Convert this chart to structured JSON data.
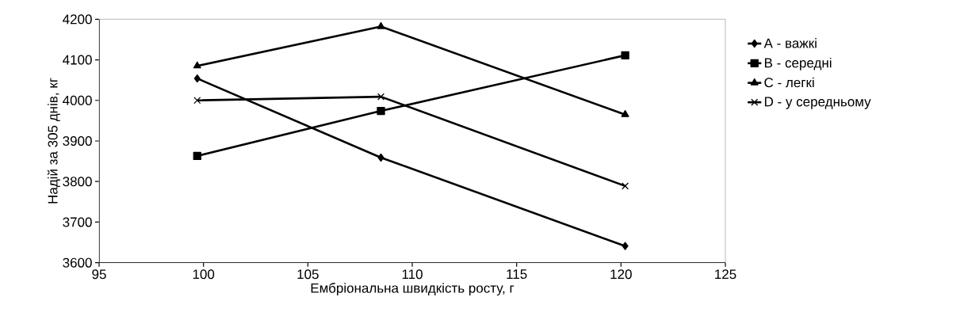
{
  "chart_data": {
    "type": "line",
    "xlabel": "Ембріональна швидкість росту, г",
    "ylabel": "Надій за 305 днів, кг",
    "x": [
      99.7,
      108.5,
      120.2
    ],
    "series": [
      {
        "name": "A - важкі",
        "color": "#000000",
        "marker": "diamond",
        "values": [
          4054,
          3859,
          3641
        ]
      },
      {
        "name": "B - середні",
        "color": "#000000",
        "marker": "square",
        "values": [
          3863,
          3974,
          4111
        ]
      },
      {
        "name": "C - легкі",
        "color": "#000000",
        "marker": "triangle",
        "values": [
          4085,
          4182,
          3965
        ]
      },
      {
        "name": "D - у середньому",
        "color": "#000000",
        "marker": "cross",
        "values": [
          4000,
          4009,
          3789
        ]
      }
    ],
    "xlim": [
      95,
      125
    ],
    "xticks": [
      95,
      100,
      105,
      110,
      115,
      120,
      125
    ],
    "ylim": [
      3600,
      4200
    ],
    "yticks": [
      3600,
      3700,
      3800,
      3900,
      4000,
      4100,
      4200
    ],
    "grid": false,
    "legend": "right",
    "line_style": "solid"
  }
}
